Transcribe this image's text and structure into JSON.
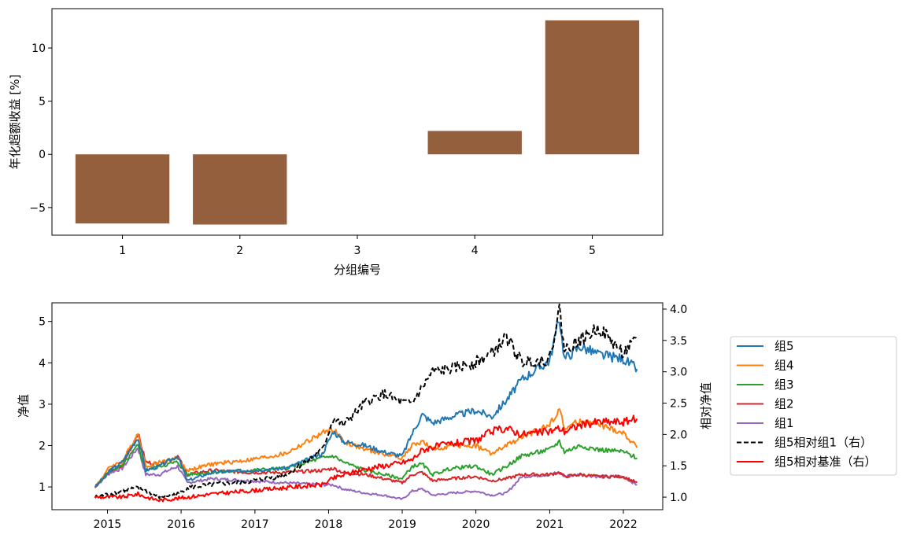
{
  "chart_data": [
    {
      "type": "bar",
      "categories": [
        "1",
        "2",
        "3",
        "4",
        "5"
      ],
      "values": [
        -6.5,
        -6.6,
        0.0,
        2.2,
        12.6
      ],
      "xlabel": "分组编号",
      "ylabel": "年化超额收益 [%]",
      "ylim": [
        -7.6,
        13.7
      ],
      "yticks": [
        -5,
        0,
        5,
        10
      ],
      "ytick_labels": [
        "−5",
        "0",
        "5",
        "10"
      ],
      "bar_color": "#935f3c",
      "grid": false
    },
    {
      "type": "line",
      "x_start": "2014-11-01",
      "x_end": "2022-03-15",
      "xticks": [
        "2015",
        "2016",
        "2017",
        "2018",
        "2019",
        "2020",
        "2021",
        "2022"
      ],
      "xlim": [
        "2014-04-01",
        "2022-07-15"
      ],
      "ylabel": "净值",
      "ylabel_right": "相对净值",
      "ylim": [
        0.45,
        5.45
      ],
      "ylim_right": [
        0.8,
        4.1
      ],
      "yticks": [
        1,
        2,
        3,
        4,
        5
      ],
      "yticks_right": [
        "1.0",
        "1.5",
        "2.0",
        "2.5",
        "3.0",
        "3.5",
        "4.0"
      ],
      "legend_position": "right",
      "grid": false,
      "series": [
        {
          "name": "组5",
          "axis": "left",
          "color": "#1f77b4",
          "dashed": false,
          "points": [
            [
              "2014-11-01",
              1.0
            ],
            [
              "2015-01-15",
              1.4
            ],
            [
              "2015-03-15",
              1.6
            ],
            [
              "2015-06-01",
              2.2
            ],
            [
              "2015-07-10",
              1.4
            ],
            [
              "2015-09-15",
              1.5
            ],
            [
              "2015-12-15",
              1.75
            ],
            [
              "2016-02-01",
              1.15
            ],
            [
              "2016-06-01",
              1.35
            ],
            [
              "2016-12-01",
              1.4
            ],
            [
              "2017-06-01",
              1.45
            ],
            [
              "2017-12-01",
              1.8
            ],
            [
              "2018-01-25",
              2.35
            ],
            [
              "2018-03-15",
              2.1
            ],
            [
              "2018-07-01",
              2.0
            ],
            [
              "2018-10-01",
              1.85
            ],
            [
              "2019-01-01",
              1.75
            ],
            [
              "2019-02-20",
              2.3
            ],
            [
              "2019-04-10",
              2.75
            ],
            [
              "2019-06-01",
              2.55
            ],
            [
              "2019-09-01",
              2.7
            ],
            [
              "2019-12-31",
              2.85
            ],
            [
              "2020-03-20",
              2.7
            ],
            [
              "2020-06-01",
              3.1
            ],
            [
              "2020-08-15",
              3.6
            ],
            [
              "2020-12-31",
              4.05
            ],
            [
              "2021-02-18",
              5.1
            ],
            [
              "2021-03-15",
              4.1
            ],
            [
              "2021-06-01",
              4.4
            ],
            [
              "2021-09-01",
              4.2
            ],
            [
              "2021-12-31",
              4.1
            ],
            [
              "2022-03-10",
              3.85
            ]
          ]
        },
        {
          "name": "组4",
          "axis": "left",
          "color": "#ff7f0e",
          "dashed": false,
          "points": [
            [
              "2014-11-01",
              1.0
            ],
            [
              "2015-01-15",
              1.5
            ],
            [
              "2015-03-15",
              1.6
            ],
            [
              "2015-06-01",
              2.3
            ],
            [
              "2015-07-10",
              1.5
            ],
            [
              "2015-09-15",
              1.6
            ],
            [
              "2015-12-15",
              1.7
            ],
            [
              "2016-02-01",
              1.4
            ],
            [
              "2016-06-01",
              1.55
            ],
            [
              "2016-12-01",
              1.65
            ],
            [
              "2017-06-01",
              1.8
            ],
            [
              "2017-12-01",
              2.3
            ],
            [
              "2018-01-25",
              2.4
            ],
            [
              "2018-03-15",
              2.1
            ],
            [
              "2018-07-01",
              1.9
            ],
            [
              "2018-10-01",
              1.8
            ],
            [
              "2019-01-01",
              1.7
            ],
            [
              "2019-02-20",
              2.0
            ],
            [
              "2019-04-10",
              2.1
            ],
            [
              "2019-06-01",
              1.9
            ],
            [
              "2019-09-01",
              2.0
            ],
            [
              "2019-12-31",
              2.0
            ],
            [
              "2020-03-20",
              1.8
            ],
            [
              "2020-06-01",
              2.0
            ],
            [
              "2020-08-15",
              2.2
            ],
            [
              "2020-12-31",
              2.5
            ],
            [
              "2021-02-18",
              2.9
            ],
            [
              "2021-03-15",
              2.4
            ],
            [
              "2021-06-01",
              2.6
            ],
            [
              "2021-09-01",
              2.5
            ],
            [
              "2021-12-31",
              2.3
            ],
            [
              "2022-03-10",
              1.95
            ]
          ]
        },
        {
          "name": "组3",
          "axis": "left",
          "color": "#2ca02c",
          "dashed": false,
          "points": [
            [
              "2014-11-01",
              1.0
            ],
            [
              "2015-01-15",
              1.4
            ],
            [
              "2015-03-15",
              1.5
            ],
            [
              "2015-06-01",
              2.0
            ],
            [
              "2015-07-10",
              1.4
            ],
            [
              "2015-09-15",
              1.5
            ],
            [
              "2015-12-15",
              1.6
            ],
            [
              "2016-02-01",
              1.3
            ],
            [
              "2016-06-01",
              1.35
            ],
            [
              "2016-12-01",
              1.4
            ],
            [
              "2017-06-01",
              1.45
            ],
            [
              "2017-12-01",
              1.7
            ],
            [
              "2018-01-25",
              1.75
            ],
            [
              "2018-03-15",
              1.6
            ],
            [
              "2018-07-01",
              1.4
            ],
            [
              "2018-10-01",
              1.3
            ],
            [
              "2019-01-01",
              1.2
            ],
            [
              "2019-02-20",
              1.5
            ],
            [
              "2019-04-10",
              1.55
            ],
            [
              "2019-06-01",
              1.3
            ],
            [
              "2019-09-01",
              1.45
            ],
            [
              "2019-12-31",
              1.5
            ],
            [
              "2020-03-20",
              1.3
            ],
            [
              "2020-06-01",
              1.5
            ],
            [
              "2020-08-15",
              1.75
            ],
            [
              "2020-12-31",
              1.9
            ],
            [
              "2021-02-18",
              2.1
            ],
            [
              "2021-03-15",
              1.85
            ],
            [
              "2021-06-01",
              2.0
            ],
            [
              "2021-09-01",
              1.9
            ],
            [
              "2021-12-31",
              1.85
            ],
            [
              "2022-03-10",
              1.7
            ]
          ]
        },
        {
          "name": "组2",
          "axis": "left",
          "color": "#d62728",
          "dashed": false,
          "points": [
            [
              "2014-11-01",
              1.0
            ],
            [
              "2015-01-15",
              1.4
            ],
            [
              "2015-03-15",
              1.5
            ],
            [
              "2015-06-01",
              2.3
            ],
            [
              "2015-07-10",
              1.6
            ],
            [
              "2015-09-15",
              1.55
            ],
            [
              "2015-12-15",
              1.75
            ],
            [
              "2016-02-01",
              1.3
            ],
            [
              "2016-06-01",
              1.4
            ],
            [
              "2016-12-01",
              1.35
            ],
            [
              "2017-06-01",
              1.35
            ],
            [
              "2017-12-01",
              1.4
            ],
            [
              "2018-01-25",
              1.45
            ],
            [
              "2018-03-15",
              1.35
            ],
            [
              "2018-07-01",
              1.3
            ],
            [
              "2018-10-01",
              1.2
            ],
            [
              "2019-01-01",
              1.1
            ],
            [
              "2019-02-20",
              1.3
            ],
            [
              "2019-04-10",
              1.35
            ],
            [
              "2019-06-01",
              1.15
            ],
            [
              "2019-09-01",
              1.2
            ],
            [
              "2019-12-31",
              1.25
            ],
            [
              "2020-03-20",
              1.15
            ],
            [
              "2020-06-01",
              1.2
            ],
            [
              "2020-08-15",
              1.3
            ],
            [
              "2020-12-31",
              1.3
            ],
            [
              "2021-02-18",
              1.35
            ],
            [
              "2021-03-15",
              1.25
            ],
            [
              "2021-06-01",
              1.3
            ],
            [
              "2021-09-01",
              1.25
            ],
            [
              "2021-12-31",
              1.25
            ],
            [
              "2022-03-10",
              1.1
            ]
          ]
        },
        {
          "name": "组1",
          "axis": "left",
          "color": "#9467bd",
          "dashed": false,
          "points": [
            [
              "2014-11-01",
              1.0
            ],
            [
              "2015-01-15",
              1.35
            ],
            [
              "2015-03-15",
              1.45
            ],
            [
              "2015-06-01",
              1.95
            ],
            [
              "2015-07-10",
              1.3
            ],
            [
              "2015-09-15",
              1.3
            ],
            [
              "2015-12-15",
              1.5
            ],
            [
              "2016-02-01",
              1.1
            ],
            [
              "2016-06-01",
              1.2
            ],
            [
              "2016-12-01",
              1.15
            ],
            [
              "2017-06-01",
              1.1
            ],
            [
              "2017-12-01",
              1.05
            ],
            [
              "2018-01-25",
              1.05
            ],
            [
              "2018-03-15",
              0.95
            ],
            [
              "2018-07-01",
              0.85
            ],
            [
              "2018-10-01",
              0.8
            ],
            [
              "2019-01-01",
              0.7
            ],
            [
              "2019-02-20",
              0.9
            ],
            [
              "2019-04-10",
              0.95
            ],
            [
              "2019-06-01",
              0.8
            ],
            [
              "2019-09-01",
              0.85
            ],
            [
              "2019-12-31",
              0.9
            ],
            [
              "2020-03-20",
              0.8
            ],
            [
              "2020-06-01",
              0.85
            ],
            [
              "2020-08-15",
              1.25
            ],
            [
              "2020-12-31",
              1.3
            ],
            [
              "2021-02-18",
              1.35
            ],
            [
              "2021-03-15",
              1.25
            ],
            [
              "2021-06-01",
              1.3
            ],
            [
              "2021-09-01",
              1.25
            ],
            [
              "2021-12-31",
              1.25
            ],
            [
              "2022-03-10",
              1.05
            ]
          ]
        },
        {
          "name": "组5相对组1（右）",
          "axis": "right",
          "color": "#000000",
          "dashed": true,
          "points": [
            [
              "2014-11-01",
              1.0
            ],
            [
              "2015-01-15",
              1.05
            ],
            [
              "2015-03-15",
              1.1
            ],
            [
              "2015-06-01",
              1.15
            ],
            [
              "2015-07-10",
              1.1
            ],
            [
              "2015-09-15",
              1.0
            ],
            [
              "2015-12-15",
              1.05
            ],
            [
              "2016-02-01",
              1.15
            ],
            [
              "2016-06-01",
              1.2
            ],
            [
              "2016-12-01",
              1.25
            ],
            [
              "2017-06-01",
              1.35
            ],
            [
              "2017-12-01",
              1.75
            ],
            [
              "2018-01-25",
              2.25
            ],
            [
              "2018-03-15",
              2.15
            ],
            [
              "2018-07-01",
              2.5
            ],
            [
              "2018-10-01",
              2.65
            ],
            [
              "2019-01-01",
              2.5
            ],
            [
              "2019-02-20",
              2.5
            ],
            [
              "2019-04-10",
              2.75
            ],
            [
              "2019-06-01",
              3.0
            ],
            [
              "2019-09-01",
              3.05
            ],
            [
              "2019-12-31",
              3.15
            ],
            [
              "2020-03-20",
              3.3
            ],
            [
              "2020-06-01",
              3.55
            ],
            [
              "2020-08-15",
              3.15
            ],
            [
              "2020-12-31",
              3.2
            ],
            [
              "2021-02-18",
              4.0
            ],
            [
              "2021-03-15",
              3.35
            ],
            [
              "2021-06-01",
              3.5
            ],
            [
              "2021-09-01",
              3.7
            ],
            [
              "2021-12-31",
              3.3
            ],
            [
              "2022-03-10",
              3.5
            ]
          ]
        },
        {
          "name": "组5相对基准（右）",
          "axis": "right",
          "color": "#ff0000",
          "dashed": false,
          "points": [
            [
              "2014-11-01",
              1.0
            ],
            [
              "2015-01-15",
              1.0
            ],
            [
              "2015-03-15",
              1.0
            ],
            [
              "2015-06-01",
              1.05
            ],
            [
              "2015-07-10",
              1.0
            ],
            [
              "2015-09-15",
              0.95
            ],
            [
              "2015-12-15",
              0.98
            ],
            [
              "2016-02-01",
              1.0
            ],
            [
              "2016-06-01",
              1.05
            ],
            [
              "2016-12-01",
              1.1
            ],
            [
              "2017-06-01",
              1.15
            ],
            [
              "2017-12-01",
              1.2
            ],
            [
              "2018-01-25",
              1.3
            ],
            [
              "2018-03-15",
              1.35
            ],
            [
              "2018-07-01",
              1.45
            ],
            [
              "2018-10-01",
              1.5
            ],
            [
              "2019-01-01",
              1.55
            ],
            [
              "2019-02-20",
              1.6
            ],
            [
              "2019-04-10",
              1.75
            ],
            [
              "2019-06-01",
              1.8
            ],
            [
              "2019-09-01",
              1.85
            ],
            [
              "2019-12-31",
              1.9
            ],
            [
              "2020-03-20",
              2.05
            ],
            [
              "2020-06-01",
              2.1
            ],
            [
              "2020-08-15",
              2.0
            ],
            [
              "2020-12-31",
              2.05
            ],
            [
              "2021-02-18",
              2.1
            ],
            [
              "2021-03-15",
              2.05
            ],
            [
              "2021-06-01",
              2.15
            ],
            [
              "2021-09-01",
              2.2
            ],
            [
              "2021-12-31",
              2.2
            ],
            [
              "2022-03-10",
              2.25
            ]
          ]
        }
      ]
    }
  ]
}
